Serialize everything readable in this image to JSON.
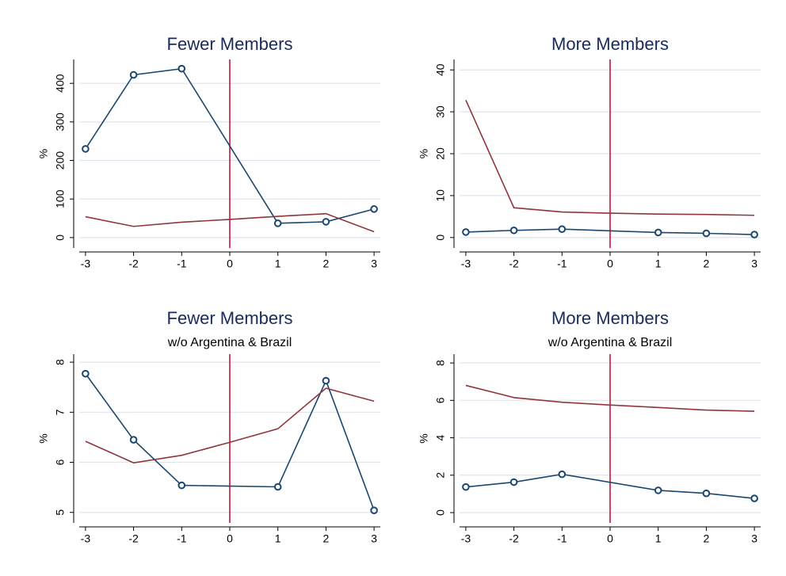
{
  "chart_data": [
    {
      "type": "line",
      "title": "Fewer Members",
      "y_label": "%",
      "xlim": [
        -3.13,
        3.13
      ],
      "xticks": [
        -3,
        -2,
        -1,
        0,
        1,
        2,
        3
      ],
      "ylim": [
        -27,
        462
      ],
      "yticks": [
        0,
        100,
        200,
        300,
        400
      ],
      "grid": true,
      "xline": 0,
      "xline_color": "#c10534",
      "series": [
        {
          "color": "#1a476f",
          "markers": true,
          "x": [
            -3,
            -2,
            -1,
            1,
            2,
            3
          ],
          "values": [
            230,
            422,
            438,
            37,
            41,
            74
          ]
        },
        {
          "color": "#90353b",
          "markers": false,
          "x": [
            -3,
            -2,
            -1,
            0,
            1,
            2,
            3
          ],
          "values": [
            54,
            29,
            40,
            47,
            55,
            62,
            15
          ]
        }
      ]
    },
    {
      "type": "line",
      "title": "More Members",
      "y_label": "%",
      "xlim": [
        -3.13,
        3.13
      ],
      "xticks": [
        -3,
        -2,
        -1,
        0,
        1,
        2,
        3
      ],
      "ylim": [
        -2.5,
        42.5
      ],
      "yticks": [
        0,
        10,
        20,
        30,
        40
      ],
      "grid": true,
      "xline": 0,
      "xline_color": "#c10534",
      "series": [
        {
          "color": "#1a476f",
          "markers": true,
          "x": [
            -3,
            -2,
            -1,
            1,
            2,
            3
          ],
          "values": [
            1.3,
            1.7,
            2.0,
            1.2,
            1.0,
            0.7
          ]
        },
        {
          "color": "#90353b",
          "markers": false,
          "x": [
            -3,
            -2,
            -1,
            0,
            1,
            2,
            3
          ],
          "values": [
            32.8,
            7.1,
            6.1,
            5.8,
            5.6,
            5.5,
            5.3
          ]
        }
      ]
    },
    {
      "type": "line",
      "title": "Fewer Members",
      "subtitle": "w/o Argentina & Brazil",
      "y_label": "%",
      "xlim": [
        -3.13,
        3.13
      ],
      "xticks": [
        -3,
        -2,
        -1,
        0,
        1,
        2,
        3
      ],
      "ylim": [
        4.79,
        8.16
      ],
      "yticks": [
        5,
        6,
        7,
        8
      ],
      "grid": true,
      "xline": 0,
      "xline_color": "#c10534",
      "series": [
        {
          "color": "#1a476f",
          "markers": true,
          "x": [
            -3,
            -2,
            -1,
            1,
            2,
            3
          ],
          "values": [
            7.77,
            6.45,
            5.54,
            5.51,
            7.63,
            5.04
          ]
        },
        {
          "color": "#90353b",
          "markers": false,
          "x": [
            -3,
            -2,
            -1,
            0,
            1,
            2,
            3
          ],
          "values": [
            6.42,
            5.99,
            6.14,
            6.4,
            6.67,
            7.48,
            7.22
          ]
        }
      ]
    },
    {
      "type": "line",
      "title": "More Members",
      "subtitle": "w/o Argentina & Brazil",
      "y_label": "%",
      "xlim": [
        -3.13,
        3.13
      ],
      "xticks": [
        -3,
        -2,
        -1,
        0,
        1,
        2,
        3
      ],
      "ylim": [
        -0.55,
        8.47
      ],
      "yticks": [
        0,
        2,
        4,
        6,
        8
      ],
      "grid": true,
      "xline": 0,
      "xline_color": "#c10534",
      "series": [
        {
          "color": "#1a476f",
          "markers": true,
          "x": [
            -3,
            -2,
            -1,
            1,
            2,
            3
          ],
          "values": [
            1.37,
            1.63,
            2.05,
            1.19,
            1.03,
            0.76
          ]
        },
        {
          "color": "#90353b",
          "markers": false,
          "x": [
            -3,
            -2,
            -1,
            0,
            1,
            2,
            3
          ],
          "values": [
            6.8,
            6.15,
            5.9,
            5.75,
            5.62,
            5.48,
            5.42
          ]
        }
      ]
    }
  ]
}
